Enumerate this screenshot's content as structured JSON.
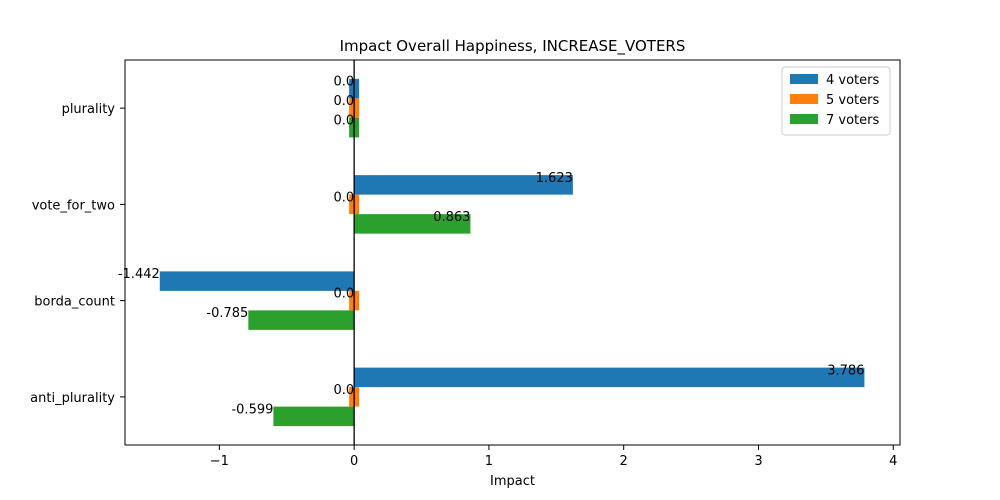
{
  "chart_data": {
    "type": "bar",
    "orientation": "horizontal",
    "title": "Impact Overall Happiness, INCREASE_VOTERS",
    "xlabel": "Impact",
    "ylabel": "",
    "categories": [
      "plurality",
      "vote_for_two",
      "borda_count",
      "anti_plurality"
    ],
    "series": [
      {
        "name": "4 voters",
        "color": "#1f77b4",
        "values": [
          0.0,
          1.623,
          -1.442,
          3.786
        ],
        "labels": [
          "0.0",
          "1.623",
          "-1.442",
          "3.786"
        ]
      },
      {
        "name": "5 voters",
        "color": "#ff7f0e",
        "values": [
          0.0,
          0.0,
          0.0,
          0.0
        ],
        "labels": [
          "0.0",
          "0.0",
          "0.0",
          "0.0"
        ]
      },
      {
        "name": "7 voters",
        "color": "#2ca02c",
        "values": [
          0.0,
          0.863,
          -0.785,
          -0.599
        ],
        "labels": [
          "0.0",
          "0.863",
          "-0.785",
          "-0.599"
        ]
      }
    ],
    "xlim": [
      -1.7,
      4.05
    ],
    "xticks": [
      -1,
      0,
      1,
      2,
      3,
      4
    ],
    "xtick_labels": [
      "−1",
      "0",
      "1",
      "2",
      "3",
      "4"
    ],
    "grid": false,
    "legend_position": "top-right",
    "zero_line": true
  }
}
